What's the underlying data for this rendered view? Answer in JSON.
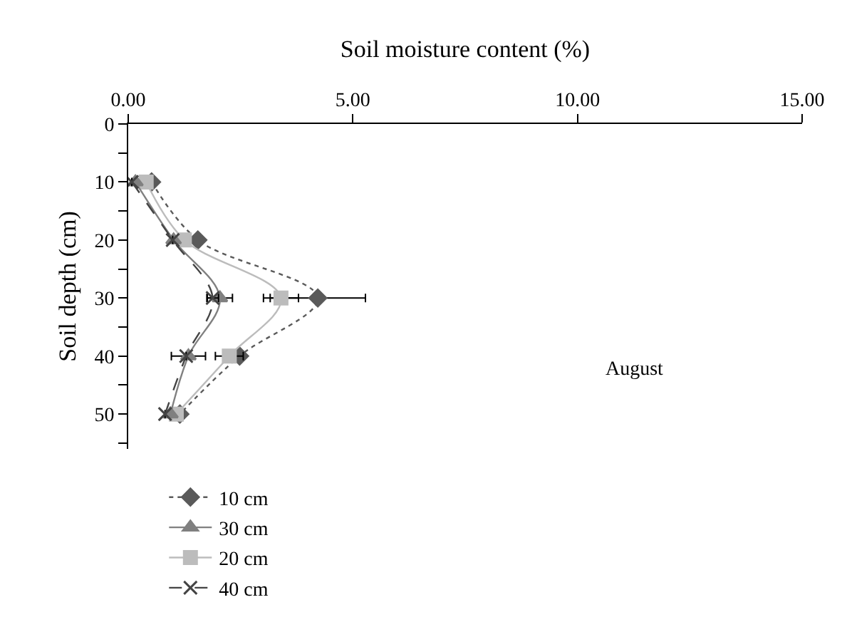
{
  "chart_data": {
    "type": "line",
    "xlabel": "Soil moisture content (%)",
    "ylabel": "Soil depth (cm)",
    "xlim": [
      0,
      15
    ],
    "xticks": [
      {
        "value": 0,
        "label": "0.00"
      },
      {
        "value": 5,
        "label": "5.00"
      },
      {
        "value": 10,
        "label": "10.00"
      },
      {
        "value": 15,
        "label": "15.00"
      }
    ],
    "ylim": [
      56,
      0
    ],
    "yticks": [
      0,
      {
        "value": 5,
        "label": null
      },
      10,
      {
        "value": 15,
        "label": null
      },
      20,
      {
        "value": 25,
        "label": null
      },
      30,
      {
        "value": 35,
        "label": null
      },
      40,
      {
        "value": 45,
        "label": null
      },
      50,
      {
        "value": 55,
        "label": null
      }
    ],
    "legend": "bottom",
    "annotations": [
      "August"
    ],
    "series": [
      {
        "name": "10 cm",
        "color": "#5a5a5a",
        "marker": "diamond",
        "line_style": "dotted",
        "values": [
          10,
          20,
          30,
          40,
          50
        ],
        "x": [
          0.52,
          1.55,
          4.22,
          2.48,
          1.15
        ],
        "xerrors": [
          null,
          null,
          1.06,
          null,
          null
        ]
      },
      {
        "name": "20 cm",
        "color": "#bcbcbc",
        "marker": "square",
        "line_style": "solid",
        "values": [
          10,
          20,
          30,
          40,
          50
        ],
        "x": [
          0.4,
          1.25,
          3.4,
          2.25,
          1.07
        ],
        "xerrors": [
          null,
          null,
          0.39,
          0.31,
          null
        ]
      },
      {
        "name": "30 cm",
        "color": "#808080",
        "marker": "triangle",
        "line_style": "solid",
        "values": [
          10,
          20,
          30,
          40,
          50
        ],
        "x": [
          0.16,
          1.01,
          2.04,
          1.34,
          0.94
        ],
        "xerrors": [
          null,
          null,
          0.28,
          0.38,
          null
        ]
      },
      {
        "name": "40 cm",
        "color": "#444444",
        "marker": "cross",
        "line_style": "dashed",
        "values": [
          10,
          20,
          30,
          40,
          50
        ],
        "x": [
          0.08,
          0.99,
          1.88,
          1.29,
          0.82
        ],
        "xerrors": [
          null,
          null,
          0.13,
          null,
          null
        ]
      }
    ]
  }
}
